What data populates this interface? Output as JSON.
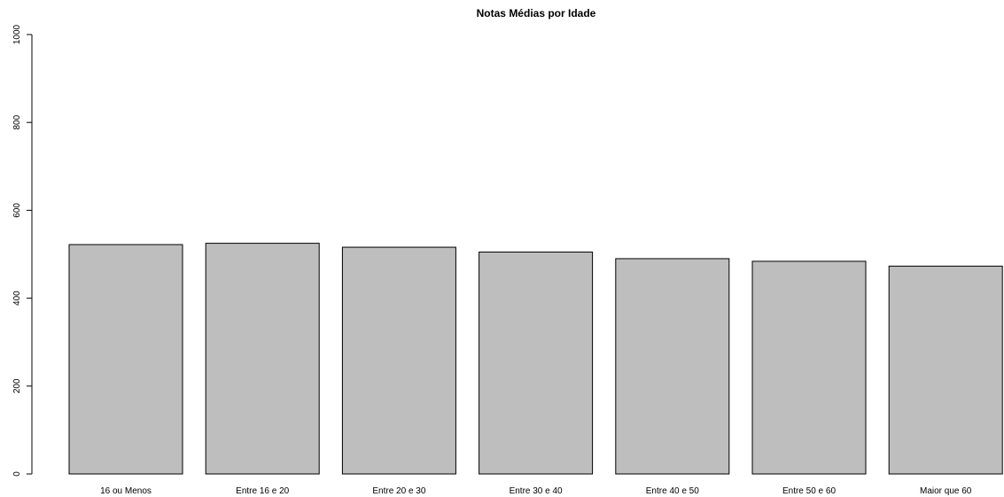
{
  "chart_data": {
    "type": "bar",
    "title": "Notas Médias por Idade",
    "xlabel": "",
    "ylabel": "",
    "categories": [
      "16 ou Menos",
      "Entre 16 e 20",
      "Entre 20 e 30",
      "Entre 30 e 40",
      "Entre 40 e 50",
      "Entre 50 e 60",
      "Maior que 60"
    ],
    "values": [
      522,
      525,
      516,
      505,
      490,
      484,
      473
    ],
    "ylim": [
      0,
      1000
    ],
    "yticks": [
      "0",
      "200",
      "400",
      "600",
      "800",
      "1000"
    ],
    "grid": false,
    "colors": {
      "bar_fill": "#bebebe",
      "bar_stroke": "#000000"
    }
  }
}
